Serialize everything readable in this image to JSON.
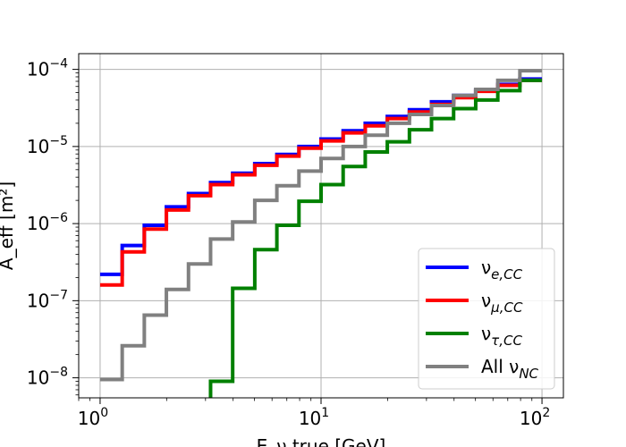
{
  "chart_data": {
    "type": "line",
    "x_scale": "log",
    "y_scale": "log",
    "xlim": [
      0.8,
      125
    ],
    "ylim": [
      5.5e-09,
      0.00016
    ],
    "grid": true,
    "xlabel": "E_ν,true [GeV]",
    "ylabel": "A_eff [m²]",
    "x_ticks": [
      {
        "value": 1,
        "label_base": "10",
        "label_exp": "0"
      },
      {
        "value": 10,
        "label_base": "10",
        "label_exp": "1"
      },
      {
        "value": 100,
        "label_base": "10",
        "label_exp": "2"
      }
    ],
    "y_ticks": [
      {
        "value": 1e-08,
        "label_base": "10",
        "label_exp": "−8"
      },
      {
        "value": 1e-07,
        "label_base": "10",
        "label_exp": "−7"
      },
      {
        "value": 1e-06,
        "label_base": "10",
        "label_exp": "−6"
      },
      {
        "value": 1e-05,
        "label_base": "10",
        "label_exp": "−5"
      },
      {
        "value": 0.0001,
        "label_base": "10",
        "label_exp": "−4"
      }
    ],
    "bin_edges": [
      1.0,
      1.259,
      1.585,
      1.995,
      2.512,
      3.162,
      3.981,
      5.012,
      6.31,
      7.943,
      10.0,
      12.59,
      15.85,
      19.95,
      25.12,
      31.62,
      39.81,
      50.12,
      63.1,
      79.43,
      100.0
    ],
    "legend": {
      "position": "lower right"
    },
    "series": [
      {
        "name_main": "ν",
        "name_sub": "e,CC",
        "color": "#0000ff",
        "values": [
          2.2e-07,
          5.2e-07,
          9.5e-07,
          1.65e-06,
          2.45e-06,
          3.4e-06,
          4.5e-06,
          6e-06,
          7.9e-06,
          1e-05,
          1.25e-05,
          1.6e-05,
          2e-05,
          2.45e-05,
          3e-05,
          3.8e-05,
          4.6e-05,
          5.4e-05,
          6.4e-05,
          7.5e-05
        ]
      },
      {
        "name_main": "ν",
        "name_sub": "μ,CC",
        "color": "#ff0000",
        "values": [
          1.6e-07,
          4.3e-07,
          8.5e-07,
          1.5e-06,
          2.3e-06,
          3.2e-06,
          4.3e-06,
          5.7e-06,
          7.5e-06,
          9.5e-06,
          1.18e-05,
          1.5e-05,
          1.85e-05,
          2.3e-05,
          2.8e-05,
          3.5e-05,
          4.3e-05,
          5.2e-05,
          6.2e-05,
          7.2e-05
        ]
      },
      {
        "name_main": "ν",
        "name_sub": "τ,CC",
        "color": "#008000",
        "values": [
          null,
          null,
          null,
          null,
          5e-09,
          9e-09,
          1.45e-07,
          4.6e-07,
          9.5e-07,
          1.95e-06,
          3.2e-06,
          5.5e-06,
          8.5e-06,
          1.15e-05,
          1.65e-05,
          2.3e-05,
          3.1e-05,
          4e-05,
          5.3e-05,
          7.2e-05
        ]
      },
      {
        "name_main": "All ν",
        "name_sub": "NC",
        "color": "#808080",
        "values": [
          9.5e-09,
          2.6e-08,
          6.5e-08,
          1.4e-07,
          3e-07,
          6.3e-07,
          1.05e-06,
          2e-06,
          3.1e-06,
          4.8e-06,
          7e-06,
          1e-05,
          1.4e-05,
          2e-05,
          2.6e-05,
          3.4e-05,
          4.6e-05,
          5.5e-05,
          7.2e-05,
          9.6e-05
        ]
      }
    ]
  }
}
